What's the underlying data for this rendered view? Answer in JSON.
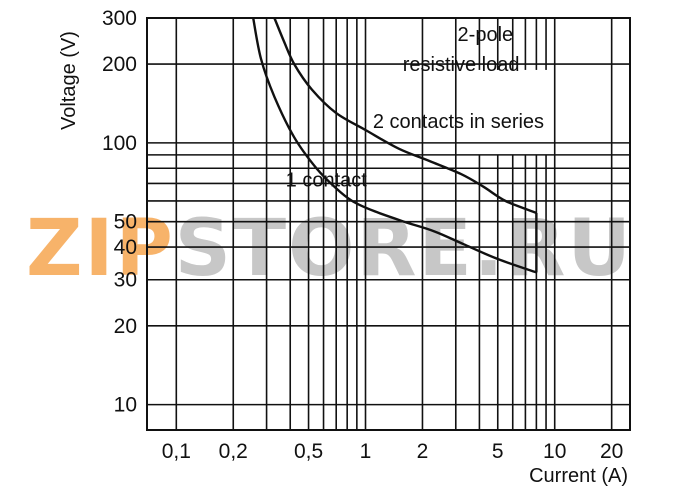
{
  "watermark": {
    "prefix": "ZIP",
    "rest": "STORE.RU",
    "prefix_color": "#f7b36a",
    "rest_color": "#c7c7c7"
  },
  "chart_data": {
    "type": "line",
    "xlabel": "Current (A)",
    "ylabel": "Voltage (V)",
    "x_scale": "log",
    "y_scale": "log",
    "xlim": [
      0.07,
      25
    ],
    "ylim": [
      8,
      300
    ],
    "x_ticks": [
      {
        "value": 0.1,
        "label": "0,1"
      },
      {
        "value": 0.2,
        "label": "0,2"
      },
      {
        "value": 0.5,
        "label": "0,5"
      },
      {
        "value": 1,
        "label": "1"
      },
      {
        "value": 2,
        "label": "2"
      },
      {
        "value": 5,
        "label": "5"
      },
      {
        "value": 10,
        "label": "10"
      },
      {
        "value": 20,
        "label": "20"
      }
    ],
    "y_ticks": [
      {
        "value": 10,
        "label": "10"
      },
      {
        "value": 20,
        "label": "20"
      },
      {
        "value": 30,
        "label": "30"
      },
      {
        "value": 40,
        "label": "40"
      },
      {
        "value": 50,
        "label": "50"
      },
      {
        "value": 100,
        "label": "100"
      },
      {
        "value": 200,
        "label": "200"
      },
      {
        "value": 300,
        "label": "300"
      }
    ],
    "x_grid": [
      0.1,
      0.2,
      0.3,
      0.4,
      0.5,
      0.6,
      0.7,
      0.8,
      0.9,
      1,
      2,
      3,
      4,
      5,
      6,
      7,
      8,
      9,
      10,
      20
    ],
    "y_grid": [
      10,
      20,
      30,
      40,
      50,
      60,
      70,
      80,
      90,
      100,
      200
    ],
    "grid_break": {
      "x_from": 4,
      "x_to": 9,
      "y_from": 90,
      "y_to": 190
    },
    "series": [
      {
        "name": "1 contact",
        "points": [
          [
            0.255,
            300
          ],
          [
            0.28,
            210
          ],
          [
            0.33,
            150
          ],
          [
            0.42,
            105
          ],
          [
            0.55,
            80
          ],
          [
            0.7,
            67
          ],
          [
            0.85,
            60
          ],
          [
            1.1,
            55
          ],
          [
            1.6,
            50
          ],
          [
            2.3,
            46
          ],
          [
            3.3,
            41
          ],
          [
            5,
            36
          ],
          [
            8,
            32
          ]
        ]
      },
      {
        "name": "2 contacts in series",
        "points": [
          [
            0.33,
            300
          ],
          [
            0.37,
            245
          ],
          [
            0.42,
            200
          ],
          [
            0.52,
            160
          ],
          [
            0.7,
            130
          ],
          [
            1,
            112
          ],
          [
            1.5,
            95
          ],
          [
            2.2,
            85
          ],
          [
            3.2,
            76
          ],
          [
            4.2,
            68
          ],
          [
            5.5,
            60
          ],
          [
            8,
            54
          ]
        ]
      }
    ],
    "cutoff_current": 8,
    "annotations": [
      {
        "text": "1 contact",
        "at": [
          0.62,
          68
        ]
      },
      {
        "text": "2 contacts in series",
        "at": [
          3.1,
          114
        ]
      },
      {
        "text": "2-pole",
        "at": [
          4.3,
          245
        ]
      },
      {
        "text": "resistive load",
        "at": [
          3.2,
          188
        ]
      }
    ]
  }
}
